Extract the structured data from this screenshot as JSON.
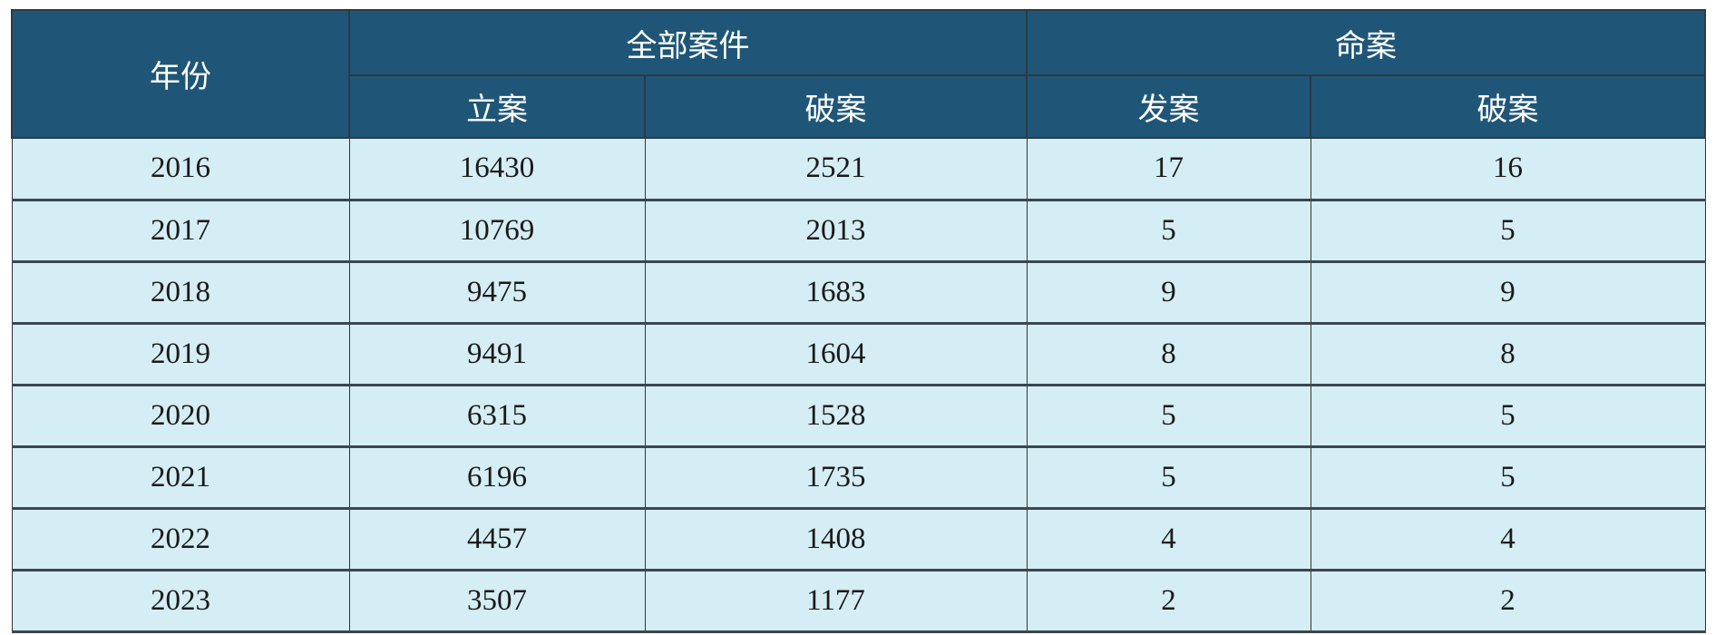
{
  "header": {
    "year": "年份",
    "group_all": "全部案件",
    "group_homicide": "命案",
    "all_filed": "立案",
    "all_solved": "破案",
    "hom_occurred": "发案",
    "hom_solved": "破案"
  },
  "rows": [
    [
      "2016",
      "16430",
      "2521",
      "17",
      "16"
    ],
    [
      "2017",
      "10769",
      "2013",
      "5",
      "5"
    ],
    [
      "2018",
      "9475",
      "1683",
      "9",
      "9"
    ],
    [
      "2019",
      "9491",
      "1604",
      "8",
      "8"
    ],
    [
      "2020",
      "6315",
      "1528",
      "5",
      "5"
    ],
    [
      "2021",
      "6196",
      "1735",
      "5",
      "5"
    ],
    [
      "2022",
      "4457",
      "1408",
      "4",
      "4"
    ],
    [
      "2023",
      "3507",
      "1177",
      "2",
      "2"
    ]
  ],
  "colors": {
    "header_bg": "#1f5677",
    "cell_bg": "#d5edf4"
  }
}
